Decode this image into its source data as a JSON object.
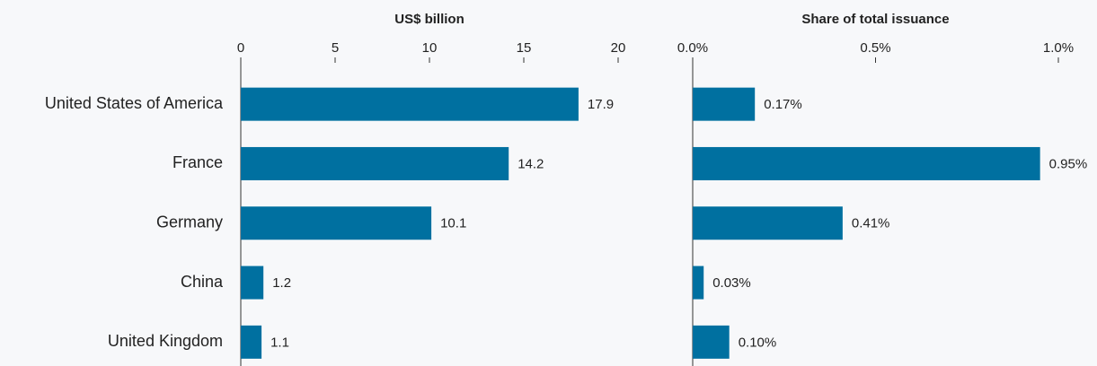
{
  "chart_data": [
    {
      "type": "hbar",
      "title": "US$ billion",
      "categories": [
        "United States of America",
        "France",
        "Germany",
        "China",
        "United Kingdom"
      ],
      "values": [
        17.9,
        14.2,
        10.1,
        1.2,
        1.1
      ],
      "color": "#0070a0",
      "xlim": [
        0,
        20
      ],
      "xticks": [
        0,
        5,
        10,
        15,
        20
      ]
    },
    {
      "type": "hbar",
      "title": "Share of total issuance",
      "values": [
        0.17,
        0.95,
        0.41,
        0.03,
        0.1
      ],
      "value_labels": [
        "0.17%",
        "0.95%",
        "0.41%",
        "0.03%",
        "0.10%"
      ],
      "color": "#0070a0",
      "xlim": [
        0,
        1
      ],
      "xticks": [
        {
          "value": 0,
          "label": "0.0%"
        },
        {
          "value": 0.5,
          "label": "0.5%"
        },
        {
          "value": 1,
          "label": "1.0%"
        }
      ]
    }
  ]
}
